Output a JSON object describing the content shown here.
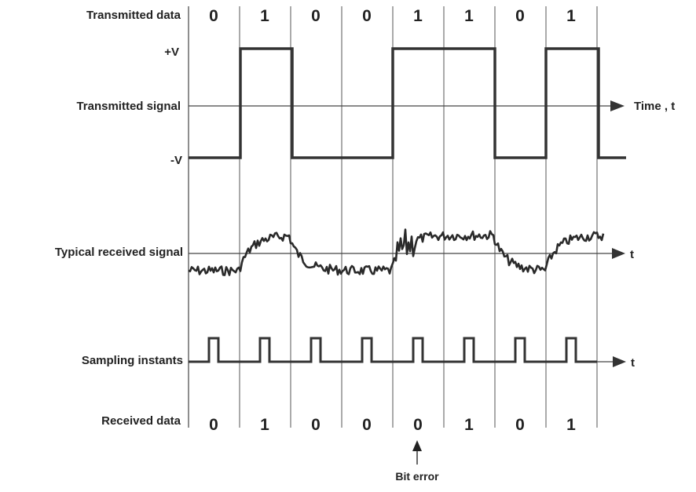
{
  "labels": {
    "transmitted_data": "Transmitted data",
    "plus_v": "+V",
    "transmitted_signal": "Transmitted signal",
    "minus_v": "-V",
    "time_axis": "Time , t",
    "received_signal": "Typical received signal",
    "received_signal_axis": "t",
    "sampling_instants": "Sampling instants",
    "sampling_axis": "t",
    "received_data": "Received data",
    "bit_error": "Bit error"
  },
  "transmitted_bits": [
    "0",
    "1",
    "0",
    "0",
    "1",
    "1",
    "0",
    "1"
  ],
  "received_bits": [
    "0",
    "1",
    "0",
    "0",
    "0",
    "1",
    "0",
    "1"
  ],
  "error_bit_index": 4
}
